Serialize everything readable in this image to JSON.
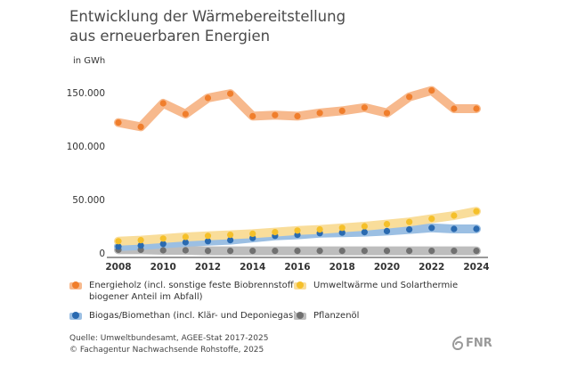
{
  "title_line1": "Entwicklung der Wärmebereitstellung",
  "title_line2": "aus erneuerbaren Energien",
  "unit": "in GWh",
  "chart_data": {
    "type": "line",
    "x": [
      2008,
      2009,
      2010,
      2011,
      2012,
      2013,
      2014,
      2015,
      2016,
      2017,
      2018,
      2019,
      2020,
      2021,
      2022,
      2023,
      2024
    ],
    "x_ticks": [
      "2008",
      "2010",
      "2012",
      "2014",
      "2016",
      "2018",
      "2020",
      "2022",
      "2024"
    ],
    "y_ticks": [
      {
        "value": 0,
        "label": "0"
      },
      {
        "value": 50000,
        "label": "50.000"
      },
      {
        "value": 100000,
        "label": "100.000"
      },
      {
        "value": 150000,
        "label": "150.000"
      }
    ],
    "ylim": [
      0,
      165000
    ],
    "ylabel": "in GWh",
    "grid": false,
    "legend_position": "bottom",
    "series": [
      {
        "key": "holz",
        "name": "Energieholz (incl. sonstige feste Biobrennstoffe, biogener Anteil im Abfall)",
        "color": "#f07e2c",
        "band_color": "#f7b98d",
        "values": [
          122000,
          118000,
          140000,
          130000,
          145000,
          149000,
          128000,
          129000,
          128000,
          131000,
          133000,
          136000,
          131000,
          146000,
          152000,
          135000,
          135000
        ]
      },
      {
        "key": "umwelt",
        "name": "Umweltwärme und Solarthermie",
        "color": "#f5c02a",
        "band_color": "#f9dd9a",
        "values": [
          11000,
          12000,
          13500,
          15000,
          16000,
          17000,
          18000,
          19500,
          21000,
          22000,
          23500,
          25000,
          27000,
          29000,
          32000,
          35000,
          39000
        ]
      },
      {
        "key": "biogas",
        "name": "Biogas/Biomethan (incl. Klär- und Deponiegas)",
        "color": "#2a6ab0",
        "band_color": "#9bbfe3",
        "values": [
          6000,
          7000,
          8500,
          10000,
          11000,
          12000,
          14000,
          16000,
          17000,
          18500,
          19000,
          19500,
          20500,
          22000,
          23500,
          22500,
          22500
        ]
      },
      {
        "key": "oel",
        "name": "Pflanzenöl",
        "color": "#707070",
        "band_color": "#bdbdbd",
        "values": [
          3000,
          3000,
          2500,
          2500,
          2000,
          2000,
          2000,
          2000,
          2000,
          2000,
          2000,
          2000,
          2000,
          2000,
          2000,
          2000,
          2000
        ]
      }
    ]
  },
  "legend": [
    {
      "key": "holz",
      "line1": "Energieholz (incl. sonstige feste Biobrennstoffe,",
      "line2": "biogener Anteil im Abfall)"
    },
    {
      "key": "umwelt",
      "line1": "Umweltwärme und Solarthermie",
      "line2": ""
    },
    {
      "key": "biogas",
      "line1": "Biogas/Biomethan (incl. Klär- und Deponiegas)",
      "line2": ""
    },
    {
      "key": "oel",
      "line1": "Pflanzenöl",
      "line2": ""
    }
  ],
  "source_line1": "Quelle: Umweltbundesamt, AGEE-Stat 2017-2025",
  "source_line2": "© Fachagentur Nachwachsende Rohstoffe, 2025",
  "logo_text": "FNR"
}
